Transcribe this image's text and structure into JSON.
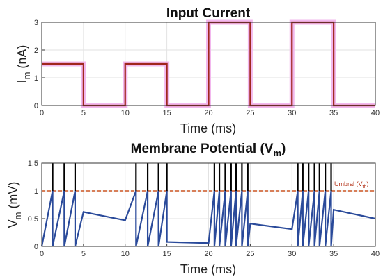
{
  "chart_data": [
    {
      "type": "line",
      "title": "Input Current",
      "xlabel": "Time (ms)",
      "ylabel": "I",
      "ylabel_sub": "m",
      "ylabel_unit": " (nA)",
      "xlim": [
        0,
        40
      ],
      "ylim": [
        0,
        3
      ],
      "xticks": [
        "0",
        "5",
        "10",
        "15",
        "20",
        "25",
        "30",
        "35",
        "40"
      ],
      "yticks": [
        "0",
        "1",
        "2",
        "3"
      ],
      "grid": true,
      "series": [
        {
          "color": "#a0271e",
          "glow_color": "#f2b8ee",
          "x": [
            0,
            5,
            5,
            10,
            10,
            15,
            15,
            20,
            20,
            25,
            25,
            30,
            30,
            35,
            35,
            40
          ],
          "y": [
            1.5,
            1.5,
            0,
            0,
            1.5,
            1.5,
            0,
            0,
            3,
            3,
            0,
            0,
            3,
            3,
            0,
            0
          ]
        }
      ]
    },
    {
      "type": "line",
      "title": "Membrane Potential (V",
      "title_sub": "m",
      "title_close": ")",
      "xlabel": "Time (ms)",
      "ylabel": "V",
      "ylabel_sub": "m",
      "ylabel_unit": " (mV)",
      "xlim": [
        0,
        40
      ],
      "ylim": [
        0,
        1.5
      ],
      "xticks": [
        "0",
        "5",
        "10",
        "15",
        "20",
        "25",
        "30",
        "35",
        "40"
      ],
      "yticks": [
        "0",
        "0.5",
        "1",
        "1.5"
      ],
      "grid": true,
      "threshold": {
        "value": 1,
        "label": "Umbral (V",
        "label_sub": "th",
        "label_close": ")",
        "color": "#cc5522"
      },
      "series": [
        {
          "color": "#2a4a9a",
          "x": [
            0,
            1.3,
            1.3,
            2.7,
            2.7,
            4.0,
            4.0,
            5.0,
            10.0,
            10.0,
            11.3,
            11.3,
            12.7,
            12.7,
            14.0,
            14.0,
            15.0,
            15.0,
            20.0,
            20.0,
            20.7,
            20.7,
            21.3,
            21.3,
            22.0,
            22.0,
            22.7,
            22.7,
            23.3,
            23.3,
            24.0,
            24.0,
            24.7,
            24.7,
            25.0,
            30.0,
            30.0,
            30.7,
            30.7,
            31.3,
            31.3,
            32.0,
            32.0,
            32.7,
            32.7,
            33.3,
            33.3,
            34.0,
            34.0,
            34.7,
            34.7,
            35.0,
            40.0
          ],
          "y": [
            0,
            1.0,
            0,
            1.0,
            0,
            1.0,
            0,
            0.62,
            0.47,
            0.47,
            1.0,
            0,
            1.0,
            0,
            1.0,
            0,
            1.0,
            0.08,
            0.06,
            0.06,
            1.0,
            0,
            1.0,
            0,
            1.0,
            0,
            1.0,
            0,
            1.0,
            0,
            1.0,
            0,
            1.0,
            0,
            0.41,
            0.31,
            0.31,
            1.0,
            0,
            1.0,
            0,
            1.0,
            0,
            1.0,
            0,
            1.0,
            0,
            1.0,
            0,
            1.0,
            0,
            0.66,
            0.5
          ]
        }
      ],
      "spikes": {
        "color": "#000000",
        "top": 1.5,
        "times": [
          1.3,
          2.7,
          4.0,
          11.3,
          12.7,
          14.0,
          15.0,
          20.7,
          21.3,
          22.0,
          22.7,
          23.3,
          24.0,
          24.7,
          30.7,
          31.3,
          32.0,
          32.7,
          33.3,
          34.0,
          34.7
        ]
      }
    }
  ]
}
